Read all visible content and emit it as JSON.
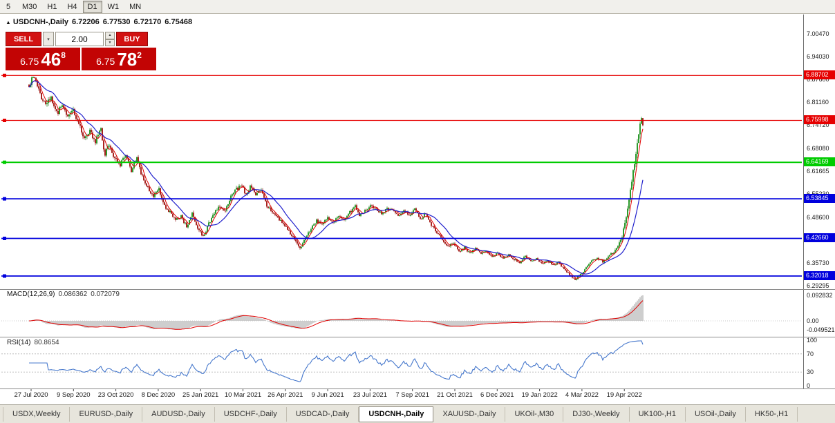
{
  "toolbar": {
    "timeframes": [
      {
        "label": "5",
        "active": false
      },
      {
        "label": "M30",
        "active": false
      },
      {
        "label": "H1",
        "active": false
      },
      {
        "label": "H4",
        "active": false
      },
      {
        "label": "D1",
        "active": true
      },
      {
        "label": "W1",
        "active": false
      },
      {
        "label": "MN",
        "active": false
      }
    ]
  },
  "chart": {
    "symbol_period": "USDCNH-,Daily",
    "ohlc": {
      "open": "6.72206",
      "high": "6.77530",
      "low": "6.72170",
      "close": "6.75468"
    }
  },
  "icons": {
    "collapse": "▲",
    "dropdown": "▾",
    "spin_up": "▴",
    "spin_down": "▾"
  },
  "trade_panel": {
    "sell_label": "SELL",
    "buy_label": "BUY",
    "volume": "2.00",
    "bid": {
      "main": "6.75",
      "big": "46",
      "sup": "8"
    },
    "ask": {
      "main": "6.75",
      "big": "78",
      "sup": "2"
    }
  },
  "price_axis": {
    "labels": [
      "7.00470",
      "6.94030",
      "6.87600",
      "6.81160",
      "6.74720",
      "6.68080",
      "6.61665",
      "6.55230",
      "6.48600",
      "6.42160",
      "6.35730",
      "6.29295"
    ]
  },
  "macd": {
    "name": "MACD(12,26,9)",
    "value": "0.086362",
    "signal": "0.072079",
    "axis_labels": [
      "0.092832",
      "0.00",
      "-0.049521"
    ]
  },
  "rsi": {
    "name": "RSI(14)",
    "value": "80.8654",
    "axis_labels": [
      "100",
      "70",
      "30",
      "0"
    ],
    "levels": [
      70,
      30
    ]
  },
  "date_axis": [
    "27 Jul 2020",
    "9 Sep 2020",
    "23 Oct 2020",
    "8 Dec 2020",
    "25 Jan 2021",
    "10 Mar 2021",
    "26 Apr 2021",
    "9 Jun 2021",
    "23 Jul 2021",
    "7 Sep 2021",
    "21 Oct 2021",
    "6 Dec 2021",
    "19 Jan 2022",
    "4 Mar 2022",
    "19 Apr 2022"
  ],
  "tabs": [
    {
      "label": "USDX,Weekly",
      "active": false
    },
    {
      "label": "EURUSD-,Daily",
      "active": false
    },
    {
      "label": "AUDUSD-,Daily",
      "active": false
    },
    {
      "label": "USDCHF-,Daily",
      "active": false
    },
    {
      "label": "USDCAD-,Daily",
      "active": false
    },
    {
      "label": "USDCNH-,Daily",
      "active": true
    },
    {
      "label": "XAUUSD-,Daily",
      "active": false
    },
    {
      "label": "UKOil-,M30",
      "active": false
    },
    {
      "label": "DJ30-,Weekly",
      "active": false
    },
    {
      "label": "UK100-,H1",
      "active": false
    },
    {
      "label": "USOil-,Daily",
      "active": false
    },
    {
      "label": "HK50-,H1",
      "active": false
    }
  ],
  "chart_data": {
    "type": "candlestick",
    "symbol": "USDCNH-",
    "timeframe": "Daily",
    "y_axis_range": [
      6.29295,
      7.0047
    ],
    "hlines": [
      {
        "price": 6.88702,
        "label": "6.88702",
        "color": "#e60000",
        "width": 1.2
      },
      {
        "price": 6.75998,
        "label": "6.75998",
        "color": "#e60000",
        "width": 1.2
      },
      {
        "price": 6.64169,
        "label": "6.64169",
        "color": "#00cc00",
        "width": 2
      },
      {
        "price": 6.53845,
        "label": "6.53845",
        "color": "#0000dd",
        "width": 1.8
      },
      {
        "price": 6.4266,
        "label": "6.42660",
        "color": "#0000dd",
        "width": 1.8
      },
      {
        "price": 6.32018,
        "label": "6.32018",
        "color": "#0000dd",
        "width": 1.8
      }
    ],
    "moving_averages": [
      {
        "period": 5,
        "color": "#e00000"
      },
      {
        "period": 17,
        "color": "#2020cc"
      }
    ],
    "macd_current": {
      "main": 0.086362,
      "signal": 0.072079
    },
    "rsi_current": 80.8654,
    "trajectory": [
      [
        42,
        6.862
      ],
      [
        50,
        6.885
      ],
      [
        58,
        6.832
      ],
      [
        66,
        6.8
      ],
      [
        74,
        6.828
      ],
      [
        82,
        6.78
      ],
      [
        90,
        6.8
      ],
      [
        98,
        6.772
      ],
      [
        106,
        6.79
      ],
      [
        114,
        6.745
      ],
      [
        122,
        6.715
      ],
      [
        130,
        6.732
      ],
      [
        138,
        6.7
      ],
      [
        146,
        6.742
      ],
      [
        151,
        6.662
      ],
      [
        158,
        6.69
      ],
      [
        166,
        6.652
      ],
      [
        174,
        6.635
      ],
      [
        182,
        6.66
      ],
      [
        190,
        6.618
      ],
      [
        198,
        6.652
      ],
      [
        206,
        6.6
      ],
      [
        214,
        6.57
      ],
      [
        222,
        6.548
      ],
      [
        230,
        6.565
      ],
      [
        238,
        6.52
      ],
      [
        246,
        6.5
      ],
      [
        254,
        6.478
      ],
      [
        262,
        6.49
      ],
      [
        270,
        6.458
      ],
      [
        278,
        6.498
      ],
      [
        286,
        6.458
      ],
      [
        294,
        6.432
      ],
      [
        302,
        6.468
      ],
      [
        310,
        6.5
      ],
      [
        318,
        6.52
      ],
      [
        326,
        6.502
      ],
      [
        334,
        6.545
      ],
      [
        342,
        6.565
      ],
      [
        350,
        6.576
      ],
      [
        356,
        6.55
      ],
      [
        362,
        6.574
      ],
      [
        370,
        6.55
      ],
      [
        378,
        6.563
      ],
      [
        386,
        6.52
      ],
      [
        394,
        6.5
      ],
      [
        402,
        6.486
      ],
      [
        410,
        6.468
      ],
      [
        418,
        6.446
      ],
      [
        426,
        6.425
      ],
      [
        434,
        6.398
      ],
      [
        442,
        6.428
      ],
      [
        450,
        6.456
      ],
      [
        458,
        6.476
      ],
      [
        466,
        6.468
      ],
      [
        474,
        6.487
      ],
      [
        482,
        6.474
      ],
      [
        490,
        6.49
      ],
      [
        498,
        6.477
      ],
      [
        506,
        6.5
      ],
      [
        514,
        6.517
      ],
      [
        520,
        6.49
      ],
      [
        528,
        6.504
      ],
      [
        536,
        6.519
      ],
      [
        544,
        6.508
      ],
      [
        552,
        6.496
      ],
      [
        560,
        6.511
      ],
      [
        568,
        6.504
      ],
      [
        576,
        6.489
      ],
      [
        584,
        6.507
      ],
      [
        592,
        6.489
      ],
      [
        600,
        6.512
      ],
      [
        608,
        6.479
      ],
      [
        616,
        6.499
      ],
      [
        624,
        6.464
      ],
      [
        632,
        6.444
      ],
      [
        640,
        6.424
      ],
      [
        648,
        6.404
      ],
      [
        656,
        6.414
      ],
      [
        664,
        6.39
      ],
      [
        672,
        6.4
      ],
      [
        680,
        6.384
      ],
      [
        688,
        6.399
      ],
      [
        696,
        6.384
      ],
      [
        704,
        6.39
      ],
      [
        712,
        6.374
      ],
      [
        720,
        6.384
      ],
      [
        728,
        6.369
      ],
      [
        736,
        6.379
      ],
      [
        744,
        6.367
      ],
      [
        752,
        6.359
      ],
      [
        760,
        6.377
      ],
      [
        768,
        6.361
      ],
      [
        776,
        6.371
      ],
      [
        784,
        6.354
      ],
      [
        792,
        6.364
      ],
      [
        800,
        6.351
      ],
      [
        808,
        6.359
      ],
      [
        816,
        6.339
      ],
      [
        824,
        6.324
      ],
      [
        832,
        6.311
      ],
      [
        840,
        6.324
      ],
      [
        848,
        6.344
      ],
      [
        856,
        6.364
      ],
      [
        864,
        6.371
      ],
      [
        872,
        6.361
      ],
      [
        880,
        6.375
      ],
      [
        888,
        6.388
      ],
      [
        894,
        6.404
      ],
      [
        900,
        6.428
      ],
      [
        906,
        6.49
      ],
      [
        912,
        6.565
      ],
      [
        916,
        6.62
      ],
      [
        920,
        6.665
      ],
      [
        924,
        6.72
      ],
      [
        927,
        6.762
      ],
      [
        930,
        6.752
      ]
    ],
    "volatility": [
      [
        42,
        0.016
      ],
      [
        120,
        0.015
      ],
      [
        200,
        0.012
      ],
      [
        300,
        0.01
      ],
      [
        400,
        0.009
      ],
      [
        500,
        0.008
      ],
      [
        600,
        0.007
      ],
      [
        700,
        0.006
      ],
      [
        800,
        0.005
      ],
      [
        860,
        0.0045
      ],
      [
        895,
        0.009
      ],
      [
        915,
        0.02
      ],
      [
        930,
        0.022
      ]
    ]
  }
}
